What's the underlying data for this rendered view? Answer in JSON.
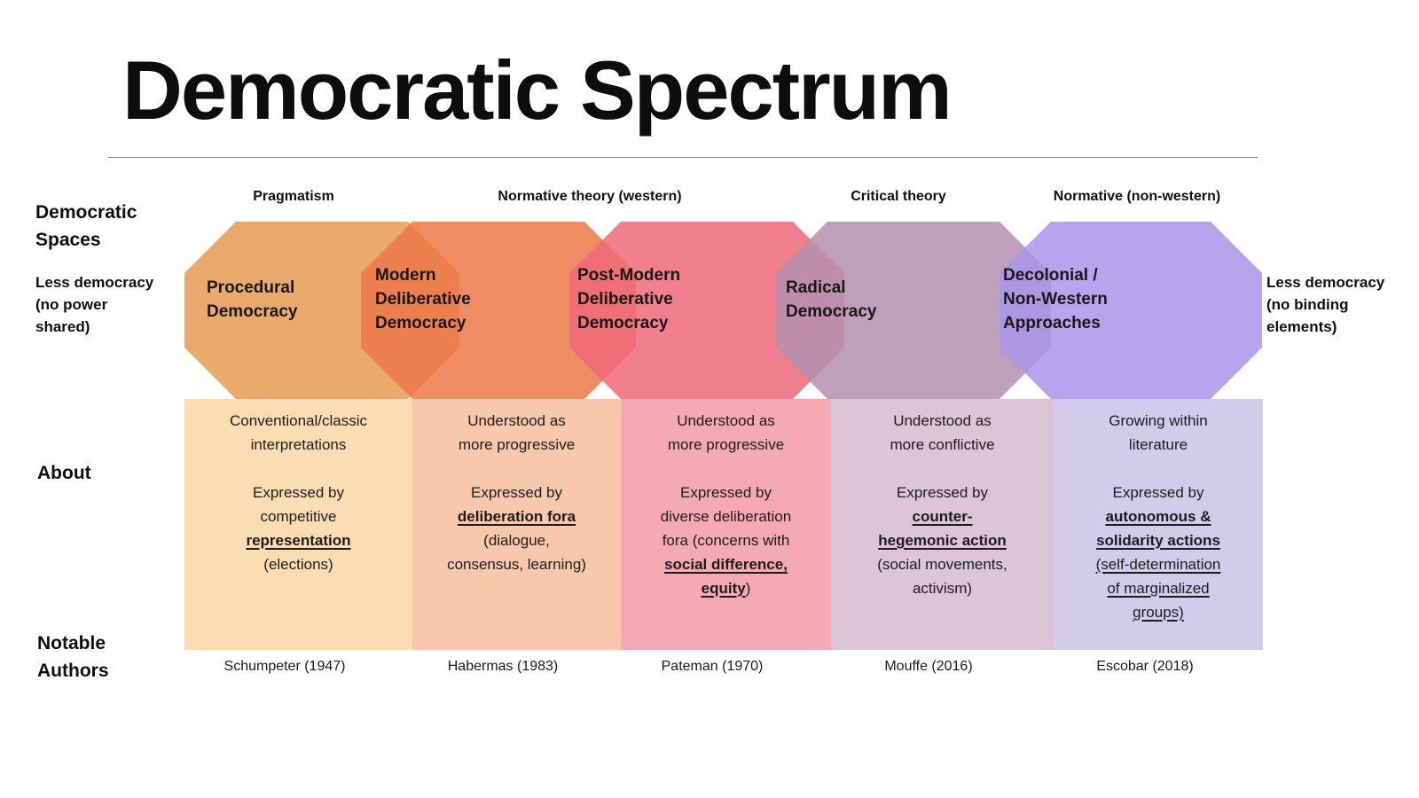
{
  "title": "Democratic Spectrum",
  "side_labels": {
    "spaces": "Democratic\nSpaces",
    "left_note": "Less democracy\n(no power\nshared)",
    "about": "About",
    "authors": "Notable\nAuthors",
    "right_note": "Less democracy\n(no binding\nelements)"
  },
  "categories": [
    "Pragmatism",
    "Normative theory (western)",
    "Critical theory",
    "Normative (non-western)"
  ],
  "spectrum": [
    {
      "title": "Procedural\nDemocracy",
      "fill": "rgba(229,155,82,0.85)",
      "fill_hex_over_white": "#e9aa6c",
      "light": "#fbdcb3",
      "about": [
        [
          {
            "t": "Conventional/classic"
          },
          {
            "br": true
          },
          {
            "t": "interpretations"
          }
        ],
        [
          {
            "t": "Expressed by"
          },
          {
            "br": true
          },
          {
            "t": "competitive"
          },
          {
            "br": true
          },
          {
            "t": "representation",
            "b": true,
            "u": true
          },
          {
            "br": true
          },
          {
            "t": "(elections)"
          }
        ]
      ],
      "author": "Schumpeter (1947)"
    },
    {
      "title": "Modern\nDeliberative\nDemocracy",
      "fill": "rgba(236,120,72,0.85)",
      "fill_hex_over_white": "#ee8c63",
      "light": "#f8c7ac",
      "about": [
        [
          {
            "t": "Understood as"
          },
          {
            "br": true
          },
          {
            "t": "more progressive"
          }
        ],
        [
          {
            "t": "Expressed by"
          },
          {
            "br": true
          },
          {
            "t": "deliberation fora",
            "b": true,
            "u": true
          },
          {
            "br": true
          },
          {
            "t": "(dialogue,"
          },
          {
            "br": true
          },
          {
            "t": "consensus, learning)"
          }
        ]
      ],
      "author": "Habermas (1983)"
    },
    {
      "title": "Post-Modern\nDeliberative\nDemocracy",
      "fill": "rgba(240,106,120,0.85)",
      "fill_hex_over_white": "#f2808c",
      "light": "#f4a9b4",
      "about": [
        [
          {
            "t": "Understood as"
          },
          {
            "br": true
          },
          {
            "t": "more progressive"
          }
        ],
        [
          {
            "t": "Expressed by"
          },
          {
            "br": true
          },
          {
            "t": "diverse deliberation"
          },
          {
            "br": true
          },
          {
            "t": "fora (concerns with"
          },
          {
            "br": true
          },
          {
            "t": "social difference,",
            "b": true,
            "u": true
          },
          {
            "br": true
          },
          {
            "t": "equity",
            "b": true,
            "u": true
          },
          {
            "t": ")"
          }
        ]
      ],
      "author": "Pateman (1970)"
    },
    {
      "title": "Radical\nDemocracy",
      "fill": "rgba(180,143,174,0.85)",
      "fill_hex_over_white": "#bd91a9",
      "light": "#dcc5d5",
      "about": [
        [
          {
            "t": "Understood as"
          },
          {
            "br": true
          },
          {
            "t": "more conflictive"
          }
        ],
        [
          {
            "t": "Expressed by"
          },
          {
            "br": true
          },
          {
            "t": "counter-",
            "b": true,
            "u": true
          },
          {
            "br": true
          },
          {
            "t": "hegemonic action",
            "b": true,
            "u": true
          },
          {
            "br": true
          },
          {
            "t": "(social movements,"
          },
          {
            "br": true
          },
          {
            "t": "activism)"
          }
        ]
      ],
      "author": "Mouffe (2016)"
    },
    {
      "title": "Decolonial /\nNon-Western\nApproaches",
      "fill": "rgba(168,149,233,0.85)",
      "fill_hex_over_white": "#b5a5ec",
      "light": "#d2cbe9",
      "about": [
        [
          {
            "t": "Growing within"
          },
          {
            "br": true
          },
          {
            "t": "literature"
          }
        ],
        [
          {
            "t": "Expressed by"
          },
          {
            "br": true
          },
          {
            "t": "autonomous &",
            "b": true,
            "u": true
          },
          {
            "br": true
          },
          {
            "t": "solidarity actions",
            "b": true,
            "u": true
          },
          {
            "br": true
          },
          {
            "t": "(self-determination",
            "u": true
          },
          {
            "br": true
          },
          {
            "t": "of marginalized",
            "u": true
          },
          {
            "br": true
          },
          {
            "t": "groups)",
            "u": true
          }
        ]
      ],
      "author": "Escobar (2018)"
    }
  ]
}
